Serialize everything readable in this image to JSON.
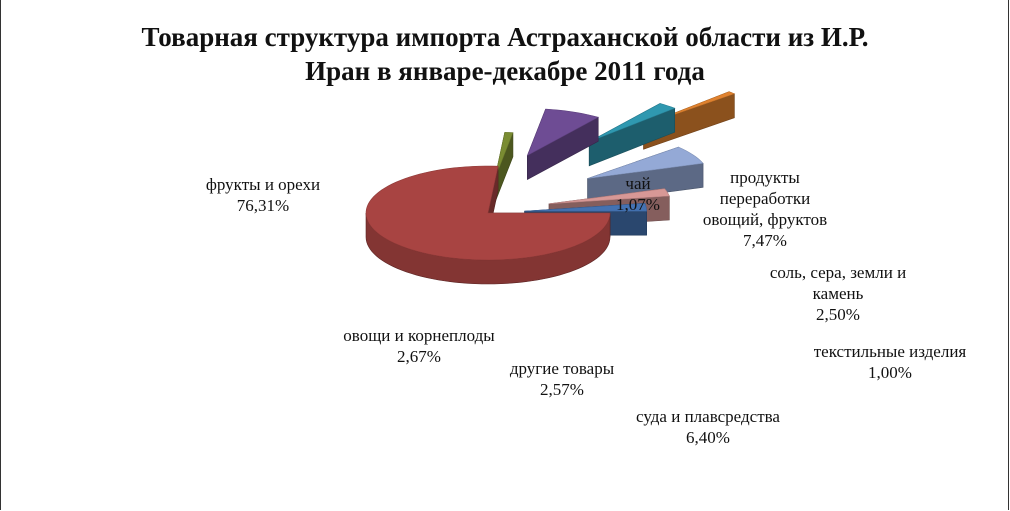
{
  "chart_data": {
    "type": "pie",
    "title_lines": [
      "Товарная структура импорта Астраханской области из И.Р.",
      "Иран в январе-декабре 2011 года"
    ],
    "slices": [
      {
        "name": "фрукты и орехи",
        "value": 76.31,
        "label": "76,31%",
        "color": "#A84442"
      },
      {
        "name": "чай",
        "value": 1.07,
        "label": "1,07%",
        "color": "#7A8C32"
      },
      {
        "name": "продукты переработки овощий, фруктов",
        "name_lines": [
          "продукты",
          "переработки",
          "овощий, фруктов"
        ],
        "value": 7.47,
        "label": "7,47%",
        "color": "#6E4C94"
      },
      {
        "name": "соль, сера, земли и камень",
        "name_lines": [
          "соль, сера, земли и",
          "камень"
        ],
        "value": 2.5,
        "label": "2,50%",
        "color": "#2F98B0"
      },
      {
        "name": "текстильные изделия",
        "value": 1.0,
        "label": "1,00%",
        "color": "#E0822F"
      },
      {
        "name": "суда и плавсредства",
        "value": 6.4,
        "label": "6,40%",
        "color": "#94A9D6"
      },
      {
        "name": "другие товары",
        "value": 2.57,
        "label": "2,57%",
        "color": "#D79896"
      },
      {
        "name": "овощи и корнеплоды",
        "value": 2.67,
        "label": "2,67%",
        "color": "#4472B2"
      }
    ],
    "legend": "none"
  }
}
